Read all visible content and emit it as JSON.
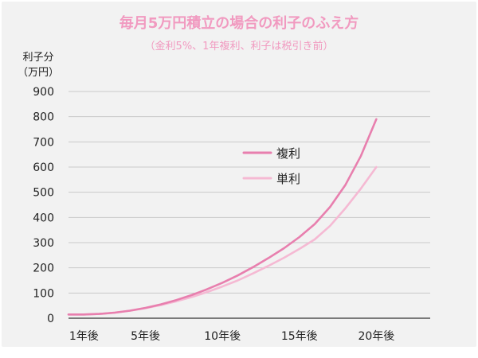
{
  "chart_data": {
    "type": "line",
    "title": "毎月5万円積立の場合の利子のふえ方",
    "subtitle": "（金利5%、1年複利、利子は税引き前）",
    "ylabel_line1": "利子分",
    "ylabel_line2": "（万円）",
    "ylim": [
      0,
      900
    ],
    "yticks": [
      0,
      100,
      200,
      300,
      400,
      500,
      600,
      700,
      800,
      900
    ],
    "xlim": [
      0,
      23.5
    ],
    "xticks": [
      {
        "value": 1,
        "label": "1年後"
      },
      {
        "value": 5,
        "label": "5年後"
      },
      {
        "value": 10,
        "label": "10年後"
      },
      {
        "value": 15,
        "label": "15年後"
      },
      {
        "value": 20,
        "label": "20年後"
      }
    ],
    "grid": true,
    "legend_position": "center",
    "series": [
      {
        "name": "複利",
        "color": "#e87fae",
        "points": [
          [
            0,
            15
          ],
          [
            1,
            15
          ],
          [
            2,
            17
          ],
          [
            3,
            22
          ],
          [
            4,
            30
          ],
          [
            5,
            41
          ],
          [
            6,
            55
          ],
          [
            7,
            72
          ],
          [
            8,
            92
          ],
          [
            9,
            115
          ],
          [
            10,
            141
          ],
          [
            11,
            170
          ],
          [
            12,
            203
          ],
          [
            13,
            239
          ],
          [
            14,
            278
          ],
          [
            15,
            322
          ],
          [
            16,
            374
          ],
          [
            17,
            442
          ],
          [
            18,
            530
          ],
          [
            19,
            645
          ],
          [
            20,
            790
          ]
        ]
      },
      {
        "name": "単利",
        "color": "#f5b9d3",
        "points": [
          [
            0,
            15
          ],
          [
            1,
            15
          ],
          [
            2,
            17
          ],
          [
            3,
            22
          ],
          [
            4,
            30
          ],
          [
            5,
            40
          ],
          [
            6,
            52
          ],
          [
            7,
            67
          ],
          [
            8,
            84
          ],
          [
            9,
            104
          ],
          [
            10,
            126
          ],
          [
            11,
            150
          ],
          [
            12,
            178
          ],
          [
            13,
            208
          ],
          [
            14,
            240
          ],
          [
            15,
            275
          ],
          [
            16,
            313
          ],
          [
            17,
            367
          ],
          [
            18,
            437
          ],
          [
            19,
            515
          ],
          [
            20,
            600
          ]
        ]
      }
    ]
  }
}
